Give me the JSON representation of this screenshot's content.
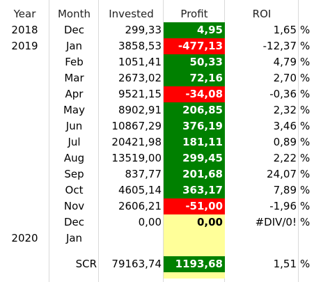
{
  "headers": {
    "year": "Year",
    "month": "Month",
    "invested": "Invested",
    "profit": "Profit",
    "roi": "ROI"
  },
  "rows": [
    {
      "year": "2018",
      "month": "Dec",
      "invested": "299,33",
      "profit": "4,95",
      "roi": "1,65",
      "pct": "%",
      "status": "positive"
    },
    {
      "year": "2019",
      "month": "Jan",
      "invested": "3858,53",
      "profit": "-477,13",
      "roi": "-12,37",
      "pct": "%",
      "status": "negative"
    },
    {
      "year": "",
      "month": "Feb",
      "invested": "1051,41",
      "profit": "50,33",
      "roi": "4,79",
      "pct": "%",
      "status": "positive"
    },
    {
      "year": "",
      "month": "Mar",
      "invested": "2673,02",
      "profit": "72,16",
      "roi": "2,70",
      "pct": "%",
      "status": "positive"
    },
    {
      "year": "",
      "month": "Apr",
      "invested": "9521,15",
      "profit": "-34,08",
      "roi": "-0,36",
      "pct": "%",
      "status": "negative"
    },
    {
      "year": "",
      "month": "May",
      "invested": "8902,91",
      "profit": "206,85",
      "roi": "2,32",
      "pct": "%",
      "status": "positive"
    },
    {
      "year": "",
      "month": "Jun",
      "invested": "10867,29",
      "profit": "376,19",
      "roi": "3,46",
      "pct": "%",
      "status": "positive"
    },
    {
      "year": "",
      "month": "Jul",
      "invested": "20421,98",
      "profit": "181,11",
      "roi": "0,89",
      "pct": "%",
      "status": "positive"
    },
    {
      "year": "",
      "month": "Aug",
      "invested": "13519,00",
      "profit": "299,45",
      "roi": "2,22",
      "pct": "%",
      "status": "positive"
    },
    {
      "year": "",
      "month": "Sep",
      "invested": "837,77",
      "profit": "201,68",
      "roi": "24,07",
      "pct": "%",
      "status": "positive"
    },
    {
      "year": "",
      "month": "Oct",
      "invested": "4605,14",
      "profit": "363,17",
      "roi": "7,89",
      "pct": "%",
      "status": "positive"
    },
    {
      "year": "",
      "month": "Nov",
      "invested": "2606,21",
      "profit": "-51,00",
      "roi": "-1,96",
      "pct": "%",
      "status": "negative"
    },
    {
      "year": "",
      "month": "Dec",
      "invested": "0,00",
      "profit": "0,00",
      "roi": "#DIV/0!",
      "pct": "%",
      "status": "neutral"
    },
    {
      "year": "2020",
      "month": "Jan",
      "invested": "",
      "profit": "",
      "roi": "",
      "pct": "",
      "status": "neutral"
    },
    {
      "year": "",
      "month": "",
      "invested": "",
      "profit": "",
      "roi": "",
      "pct": "",
      "status": "neutral"
    },
    {
      "year": "",
      "month": "",
      "invested": "",
      "profit": "",
      "roi": "",
      "pct": "",
      "status": "neutral"
    }
  ],
  "summary": {
    "label": "SCR",
    "invested": "79163,74",
    "profit": "1193,68",
    "roi": "1,51",
    "pct": "%"
  },
  "colors": {
    "positive": "#008000",
    "negative": "#ff0000",
    "neutral": "#ffff99",
    "grid": "#d9d9d9"
  }
}
